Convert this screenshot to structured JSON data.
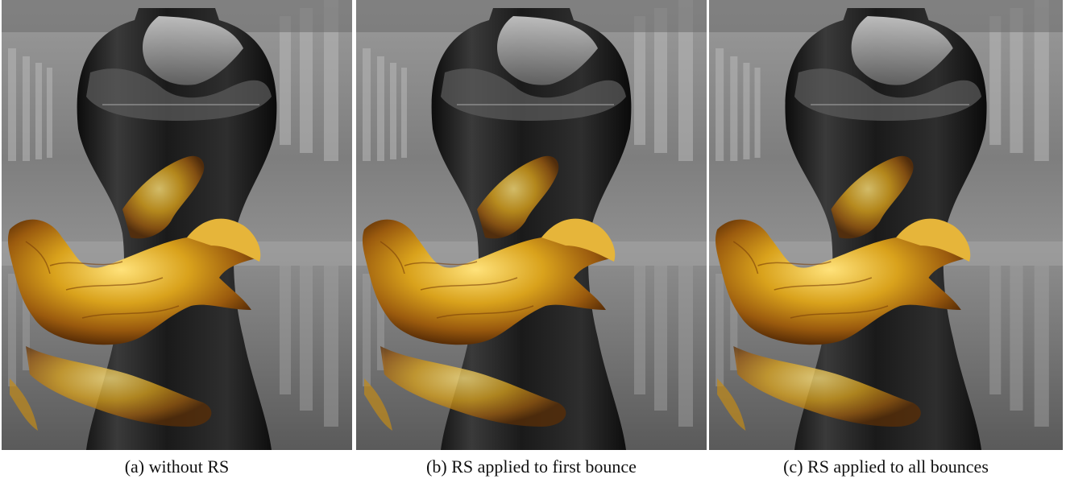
{
  "figure": {
    "panels": [
      {
        "caption": "(a) without RS",
        "image_icon": "vase-dragon-render-icon"
      },
      {
        "caption": "(b) RS applied to first bounce",
        "image_icon": "vase-dragon-render-icon"
      },
      {
        "caption": "(c) RS applied to all bounces",
        "image_icon": "vase-dragon-render-icon"
      }
    ],
    "colors": {
      "background_arcade": "#8c8c8c",
      "vase": "#1a1a1a",
      "dragon_gold": "#d8a21a",
      "dragon_shadow": "#8a4e0c"
    }
  }
}
